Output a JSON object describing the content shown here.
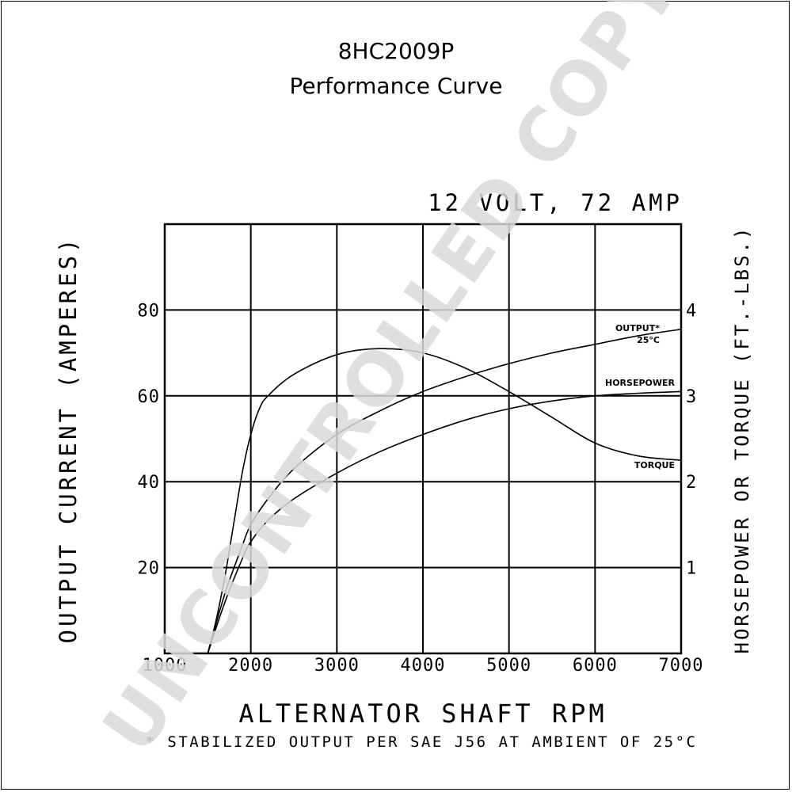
{
  "header": {
    "model": "8HC2009P",
    "subtitle": "Performance Curve"
  },
  "watermark": "UNCONTROLLED COPY",
  "chart_data": {
    "type": "line",
    "title": "12 VOLT, 72 AMP",
    "xlabel": "ALTERNATOR SHAFT RPM",
    "ylabel": "OUTPUT CURRENT (AMPERES)",
    "y2label": "HORSEPOWER OR TORQUE (FT.-LBS.)",
    "footnote": "* STABILIZED OUTPUT PER SAE J56 AT AMBIENT OF 25°C",
    "xlim": [
      1000,
      7000
    ],
    "ylim": [
      0,
      100
    ],
    "y2lim": [
      0,
      5
    ],
    "grid": true,
    "x_ticks": [
      "1000",
      "2000",
      "3000",
      "4000",
      "5000",
      "6000",
      "7000"
    ],
    "x_tick_values": [
      1000,
      2000,
      3000,
      4000,
      5000,
      6000,
      7000
    ],
    "y_ticks": [
      "20",
      "40",
      "60",
      "80"
    ],
    "y_tick_values": [
      20,
      40,
      60,
      80
    ],
    "y2_ticks": [
      "1",
      "2",
      "3",
      "4"
    ],
    "y2_tick_values": [
      1,
      2,
      3,
      4
    ],
    "series": [
      {
        "name": "OUTPUT* 25°C",
        "label_lines": [
          "OUTPUT*",
          "25°C"
        ],
        "axis": "left",
        "x": [
          1500,
          1700,
          1900,
          2000,
          2200,
          2500,
          3000,
          3500,
          4000,
          4500,
          5000,
          5500,
          6000,
          6500,
          7000
        ],
        "y": [
          0,
          14,
          25,
          30,
          36,
          43,
          51,
          56.5,
          61,
          64.5,
          67.5,
          70,
          72,
          74,
          75.5
        ]
      },
      {
        "name": "HORSEPOWER",
        "label_lines": [
          "HORSEPOWER"
        ],
        "axis": "right",
        "x": [
          1500,
          1700,
          1900,
          2000,
          2200,
          2500,
          3000,
          3500,
          4000,
          4500,
          5000,
          5500,
          6000,
          6500,
          7000
        ],
        "y": [
          0,
          0.6,
          1.1,
          1.3,
          1.55,
          1.8,
          2.1,
          2.35,
          2.55,
          2.72,
          2.85,
          2.94,
          3.0,
          3.03,
          3.05
        ]
      },
      {
        "name": "TORQUE",
        "label_lines": [
          "TORQUE"
        ],
        "axis": "right",
        "x": [
          1500,
          1600,
          1700,
          1800,
          1900,
          2000,
          2100,
          2200,
          2500,
          3000,
          3500,
          4000,
          4500,
          5000,
          5500,
          6000,
          6500,
          7000
        ],
        "y": [
          0,
          0.4,
          0.9,
          1.5,
          2.1,
          2.55,
          2.85,
          3.0,
          3.25,
          3.48,
          3.55,
          3.5,
          3.32,
          3.05,
          2.75,
          2.45,
          2.3,
          2.25
        ]
      }
    ]
  }
}
